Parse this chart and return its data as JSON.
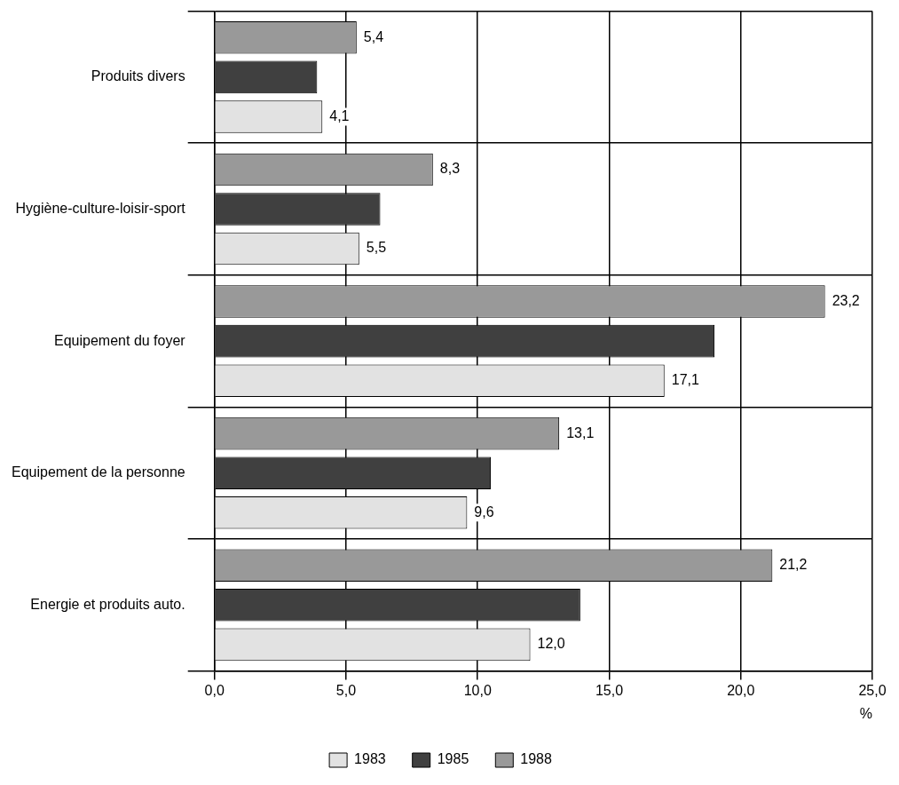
{
  "chart_data": {
    "type": "bar",
    "orientation": "horizontal",
    "xlabel": "%",
    "categories": [
      "Produits divers",
      "Hygiène-culture-loisir-sport",
      "Equipement du foyer",
      "Equipement de la personne",
      "Energie et produits auto."
    ],
    "series": [
      {
        "name": "1983",
        "color": "#e2e2e2",
        "values": [
          4.1,
          5.5,
          17.1,
          9.6,
          12.0
        ],
        "value_labels": [
          "4,1",
          "5,5",
          "17,1",
          "9,6",
          "12,0"
        ]
      },
      {
        "name": "1985",
        "color": "#404040",
        "values": [
          3.9,
          6.3,
          19.0,
          10.5,
          13.9
        ],
        "value_labels": [
          null,
          null,
          null,
          null,
          null
        ]
      },
      {
        "name": "1988",
        "color": "#999999",
        "values": [
          5.4,
          8.3,
          23.2,
          13.1,
          21.2
        ],
        "value_labels": [
          "5,4",
          "8,3",
          "23,2",
          "13,1",
          "21,2"
        ]
      }
    ],
    "xlim": [
      0,
      25
    ],
    "xticks": [
      {
        "value": 0,
        "label": "0,0"
      },
      {
        "value": 5,
        "label": "5,0"
      },
      {
        "value": 10,
        "label": "10,0"
      },
      {
        "value": 15,
        "label": "15,0"
      },
      {
        "value": 20,
        "label": "20,0"
      },
      {
        "value": 25,
        "label": "25,0"
      }
    ],
    "grid": true,
    "legend": "bottom"
  }
}
